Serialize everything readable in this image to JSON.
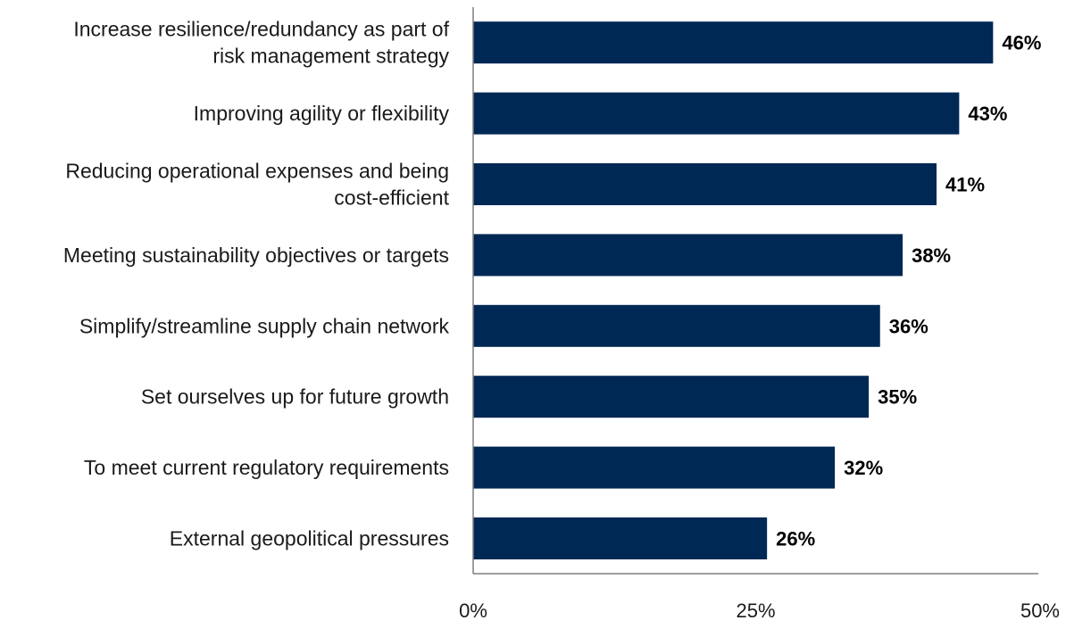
{
  "chart_data": {
    "type": "bar",
    "orientation": "horizontal",
    "categories": [
      [
        "Increase resilience/redundancy as part of",
        "risk management strategy"
      ],
      [
        "Improving agility or flexibility"
      ],
      [
        "Reducing operational expenses and being",
        "cost-efficient"
      ],
      [
        "Meeting sustainability objectives or targets"
      ],
      [
        "Simplify/streamline supply chain network"
      ],
      [
        "Set ourselves up for future growth"
      ],
      [
        "To meet current regulatory requirements"
      ],
      [
        "External geopolitical pressures"
      ]
    ],
    "values": [
      46,
      43,
      41,
      38,
      36,
      35,
      32,
      26
    ],
    "value_labels": [
      "46%",
      "43%",
      "41%",
      "38%",
      "36%",
      "35%",
      "32%",
      "26%"
    ],
    "x_ticks": [
      0,
      25,
      50
    ],
    "x_tick_labels": [
      "0%",
      "25%",
      "50%"
    ],
    "xlim": [
      0,
      50
    ],
    "grid": false,
    "colors": {
      "bar": "#002855",
      "axis": "#7f7f7f"
    }
  }
}
